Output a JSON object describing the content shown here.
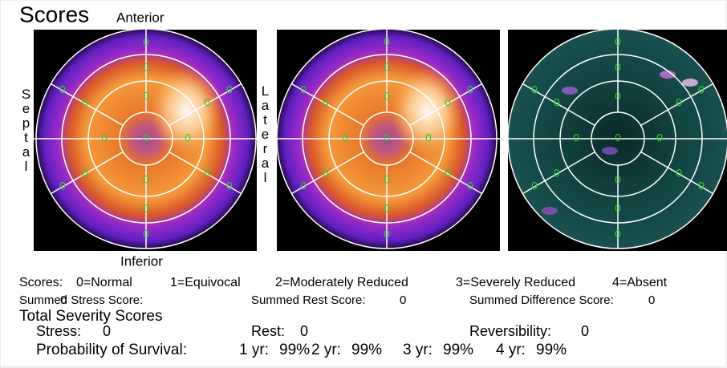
{
  "header": {
    "title": "Scores",
    "anterior": "Anterior",
    "inferior": "Inferior",
    "septal": "Septal",
    "lateral": "Lateral"
  },
  "maps": [
    {
      "scores": [
        0,
        0,
        0,
        0,
        0,
        0,
        0,
        0,
        0,
        0,
        0,
        0,
        0,
        0,
        0,
        0,
        0
      ]
    },
    {
      "scores": [
        0,
        0,
        0,
        0,
        0,
        0,
        0,
        0,
        0,
        0,
        0,
        0,
        0,
        0,
        0,
        0,
        0
      ]
    },
    {
      "scores": [
        0,
        0,
        0,
        0,
        0,
        0,
        0,
        0,
        0,
        0,
        0,
        0,
        0,
        0,
        0,
        0,
        0
      ]
    }
  ],
  "legend": {
    "label": "Scores:",
    "items": [
      "0=Normal",
      "1=Equivocal",
      "2=Moderately Reduced",
      "3=Severely Reduced",
      "4=Absent"
    ]
  },
  "summed": [
    {
      "label": "Summed Stress Score:",
      "value": 0
    },
    {
      "label": "Summed Rest Score:",
      "value": 0
    },
    {
      "label": "Summed Difference Score:",
      "value": 0
    }
  ],
  "total_severity": {
    "title": "Total Severity Scores",
    "items": [
      {
        "label": "Stress:",
        "value": 0
      },
      {
        "label": "Rest:",
        "value": 0
      },
      {
        "label": "Reversibility:",
        "value": 0
      }
    ]
  },
  "survival": {
    "label": "Probability of Survival:",
    "items": [
      {
        "period": "1 yr:",
        "value": "99%"
      },
      {
        "period": "2 yr:",
        "value": "99%"
      },
      {
        "period": "3 yr:",
        "value": "99%"
      },
      {
        "period": "4 yr:",
        "value": "99%"
      }
    ]
  }
}
